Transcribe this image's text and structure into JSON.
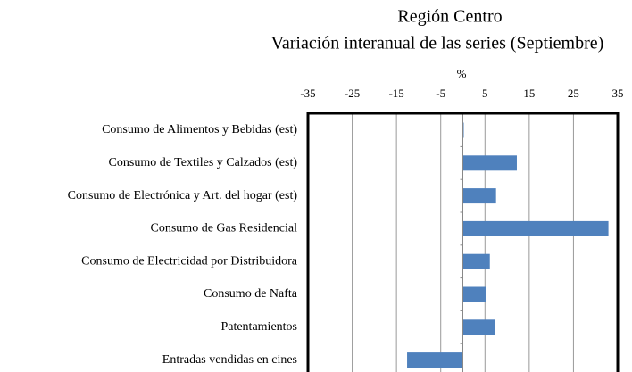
{
  "chart_data": {
    "type": "bar",
    "orientation": "horizontal",
    "title": "Región Centro",
    "subtitle": "Variación interanual de las series (Septiembre)",
    "x_label": "%",
    "categories": [
      "Consumo de Alimentos y Bebidas (est)",
      "Consumo de Textiles y Calzados (est)",
      "Consumo de Electrónica y Art. del hogar (est)",
      "Consumo de Gas Residencial",
      "Consumo de Electricidad por Distribuidora",
      "Consumo de Nafta",
      "Patentamientos",
      "Entradas vendidas en cines"
    ],
    "values": [
      0.2,
      12.2,
      7.5,
      32.9,
      6.1,
      5.3,
      7.3,
      -12.6
    ],
    "color": "#4f81bd",
    "xlim": [
      -35,
      35
    ],
    "xticks": [
      -35,
      -25,
      -15,
      -5,
      5,
      15,
      25,
      35
    ],
    "grid": true
  }
}
